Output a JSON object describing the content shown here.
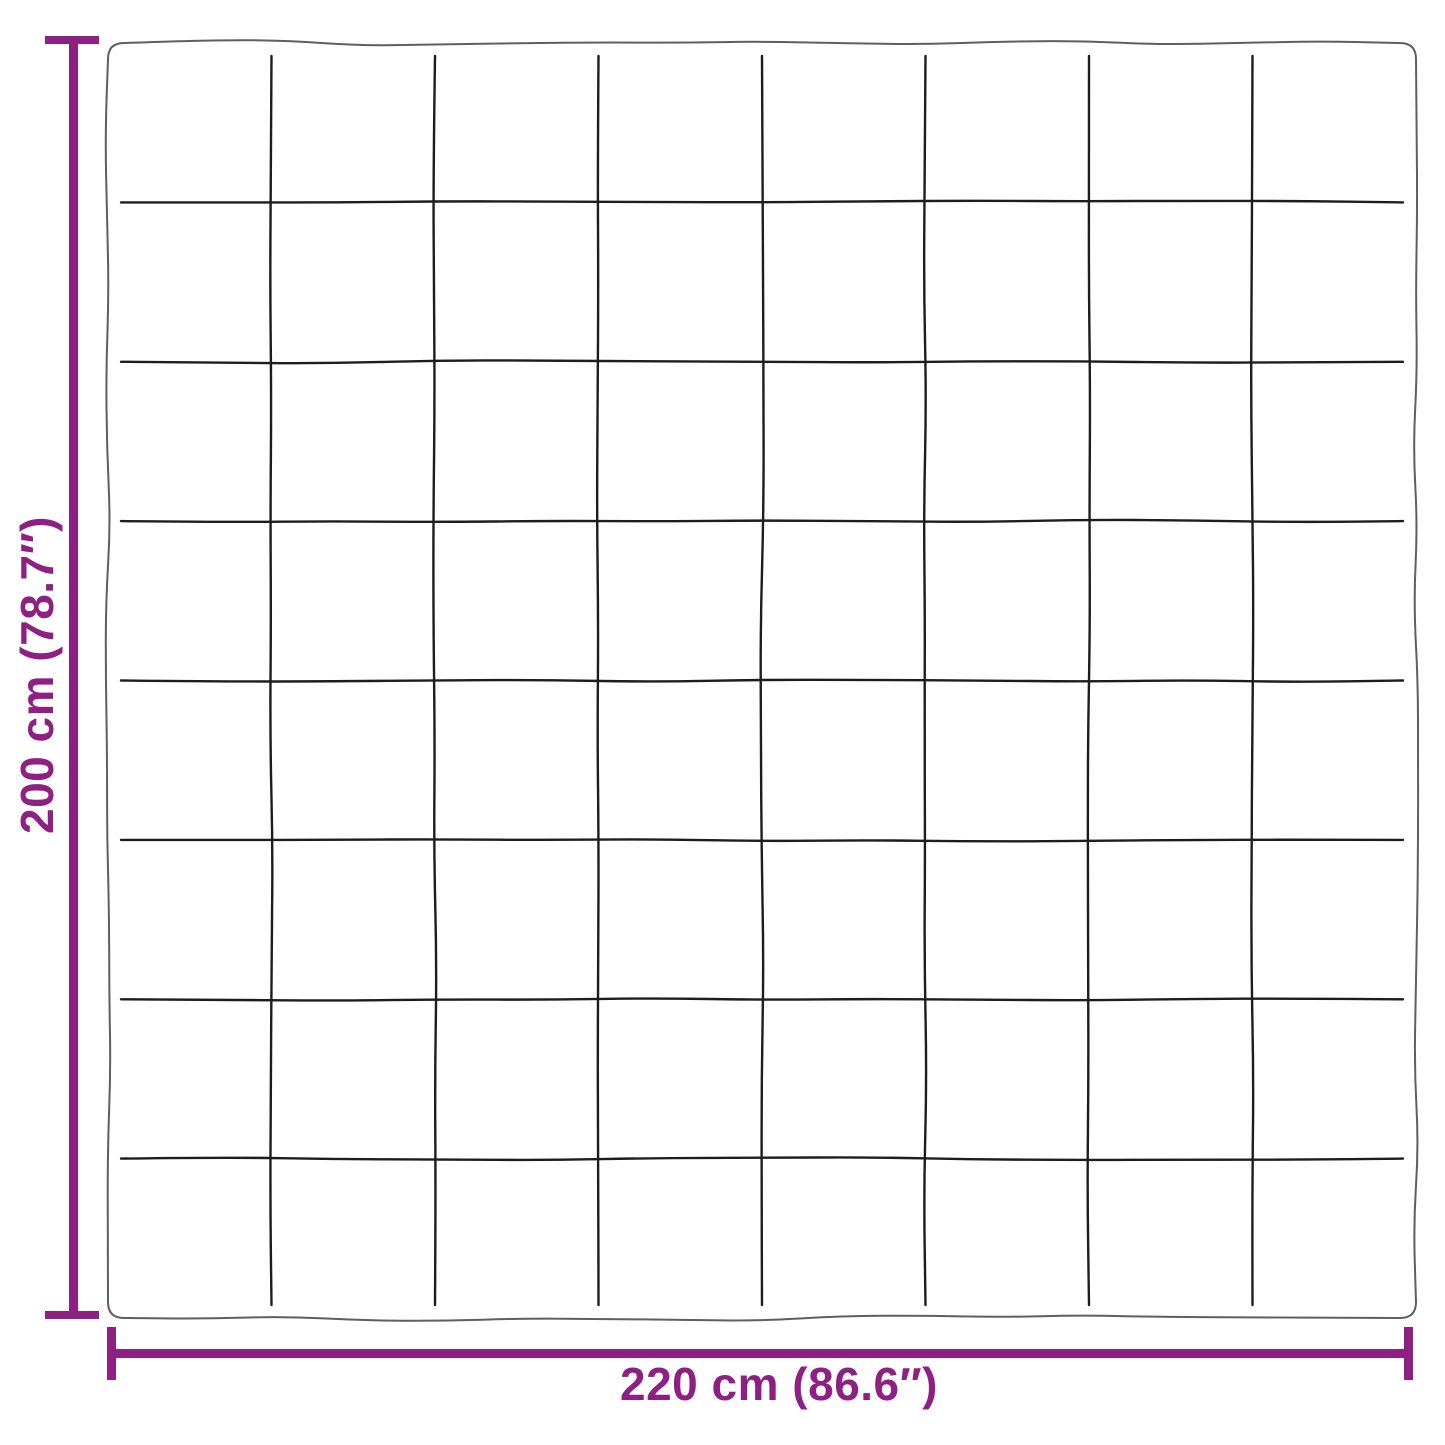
{
  "diagram": {
    "subject": "quilted-blanket-top-view",
    "height_label": "200 cm (78.7″)",
    "width_label": "220 cm (86.6″)",
    "grid": {
      "rows": 8,
      "cols": 8
    },
    "colors": {
      "dimension_accent": "#8E2083",
      "outline": "#5f5f5f",
      "grid_line": "#1d1d1d",
      "background": "#ffffff"
    }
  }
}
